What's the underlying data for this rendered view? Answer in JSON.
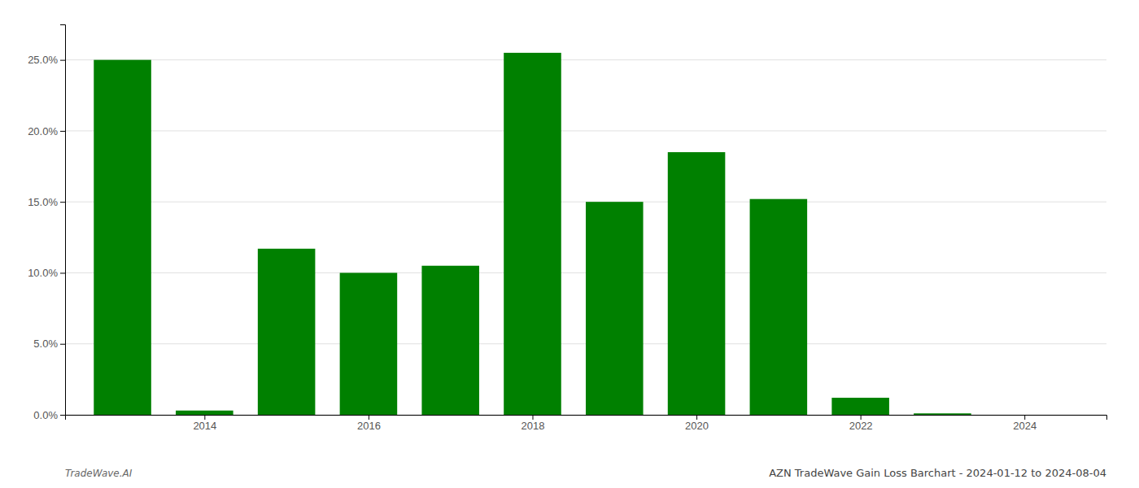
{
  "chart_data": {
    "type": "bar",
    "title": "AZN TradeWave Gain Loss Barchart - 2024-01-12 to 2024-08-04",
    "annotations": [
      "TradeWave.AI"
    ],
    "x": [
      2013,
      2014,
      2015,
      2016,
      2017,
      2018,
      2019,
      2020,
      2021,
      2022,
      2023,
      2024
    ],
    "values": [
      0.25,
      0.003,
      0.117,
      0.1,
      0.105,
      0.255,
      0.15,
      0.185,
      0.152,
      0.012,
      0.001,
      0.0
    ],
    "color": "#008000",
    "xlim": [
      2012.3,
      2025.0
    ],
    "ylim": [
      0,
      0.275
    ],
    "xticks": [
      2014,
      2016,
      2018,
      2020,
      2022,
      2024
    ],
    "yticks": [
      {
        "value": 0.0,
        "label": "0.0%"
      },
      {
        "value": 0.05,
        "label": "5.0%"
      },
      {
        "value": 0.1,
        "label": "10.0%"
      },
      {
        "value": 0.15,
        "label": "15.0%"
      },
      {
        "value": 0.2,
        "label": "20.0%"
      },
      {
        "value": 0.25,
        "label": "25.0%"
      }
    ],
    "grid": true
  }
}
